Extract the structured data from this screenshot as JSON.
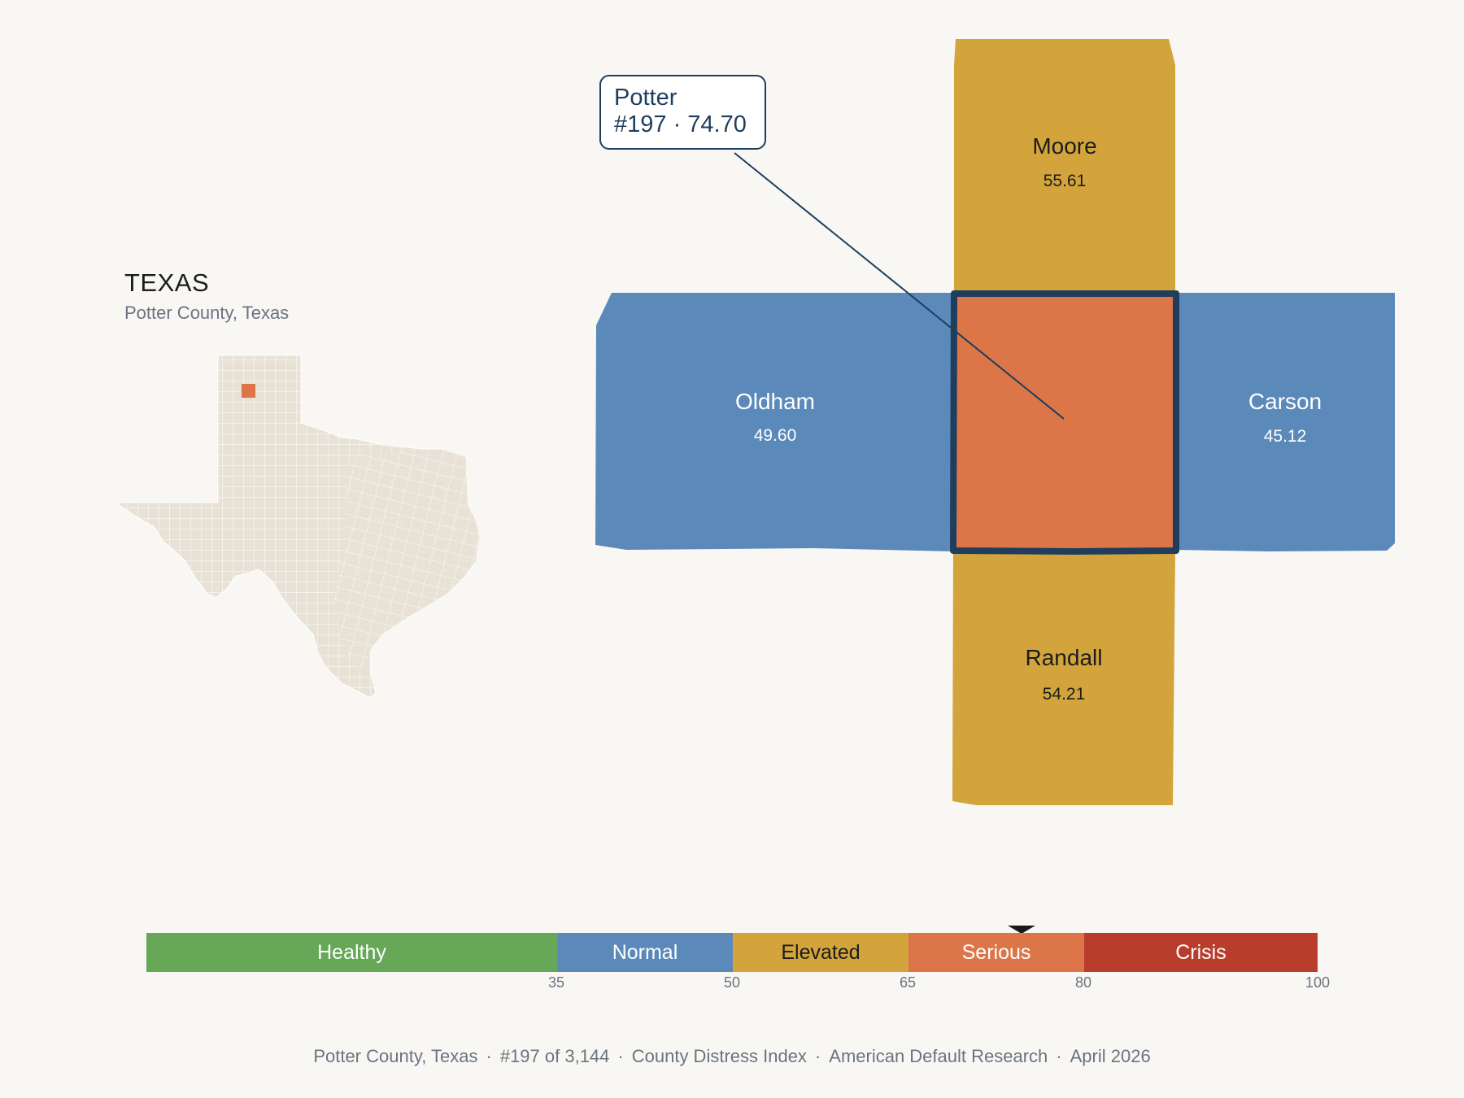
{
  "state": {
    "title": "TEXAS",
    "subtitle": "Potter County, Texas"
  },
  "colors": {
    "background": "#f9f7f4",
    "state_fill": "#e8e2d6",
    "normal": "#5b8aba",
    "elevated": "#d3a43b",
    "serious": "#dc7649",
    "crisis": "#b93d2d",
    "healthy": "#66a758",
    "outline": "#1f3d5c"
  },
  "map": {
    "focus": {
      "name": "Potter",
      "value": 74.7,
      "category": "Serious"
    },
    "neighbors": [
      {
        "name": "Moore",
        "value_label": "55.61",
        "value": 55.61,
        "category": "Elevated",
        "direction": "north"
      },
      {
        "name": "Oldham",
        "value_label": "49.60",
        "value": 49.6,
        "category": "Normal",
        "direction": "west"
      },
      {
        "name": "Carson",
        "value_label": "45.12",
        "value": 45.12,
        "category": "Normal",
        "direction": "east"
      },
      {
        "name": "Randall",
        "value_label": "54.21",
        "value": 54.21,
        "category": "Elevated",
        "direction": "south"
      }
    ]
  },
  "callout": {
    "line1": "Potter",
    "line2": "#197 · 74.70"
  },
  "scale": {
    "segments": [
      {
        "label": "Healthy",
        "from": 0,
        "to": 35,
        "color": "#66a758",
        "text_color": "#ffffff"
      },
      {
        "label": "Normal",
        "from": 35,
        "to": 50,
        "color": "#5b8aba",
        "text_color": "#ffffff"
      },
      {
        "label": "Elevated",
        "from": 50,
        "to": 65,
        "color": "#d3a43b",
        "text_color": "#1c1c1c"
      },
      {
        "label": "Serious",
        "from": 65,
        "to": 80,
        "color": "#dc7649",
        "text_color": "#ffffff"
      },
      {
        "label": "Crisis",
        "from": 80,
        "to": 100,
        "color": "#b93d2d",
        "text_color": "#ffffff"
      }
    ],
    "ticks": [
      "35",
      "50",
      "65",
      "80",
      "100"
    ],
    "marker_value": 74.7
  },
  "footer": {
    "county": "Potter County, Texas",
    "rank": "#197 of 3,144",
    "index": "County Distress Index",
    "source": "American Default Research",
    "date": "April 2026",
    "sep": "·"
  }
}
